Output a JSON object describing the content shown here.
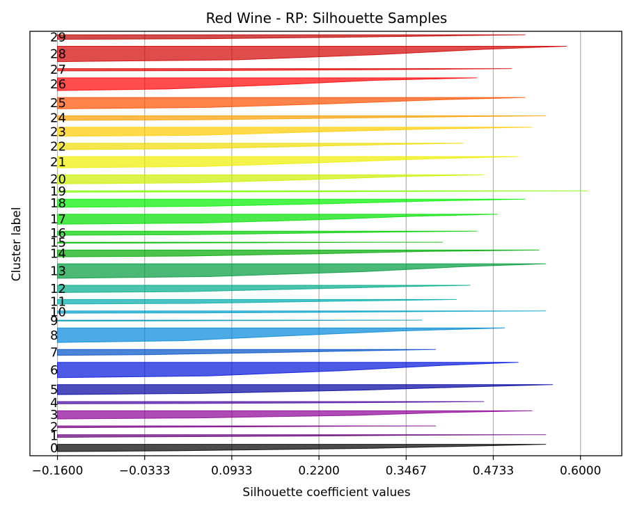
{
  "chart_data": {
    "type": "area",
    "title": "Red Wine - RP: Silhouette Samples",
    "xlabel": "Silhouette coefficient values",
    "ylabel": "Cluster label",
    "xlim": [
      -0.2,
      0.66
    ],
    "grid": "vertical",
    "x_ticks": [
      -0.16,
      -0.0333,
      0.0933,
      0.22,
      0.3467,
      0.4733,
      0.6
    ],
    "x_tick_labels": [
      "−0.1600",
      "−0.0333",
      "0.0933",
      "0.2200",
      "0.3467",
      "0.4733",
      "0.6000"
    ],
    "clusters": [
      {
        "label": "0",
        "size": 16,
        "min": -0.16,
        "p25": 0.02,
        "median": 0.3,
        "p75": 0.46,
        "max": 0.55,
        "color": "#000000"
      },
      {
        "label": "1",
        "size": 6,
        "min": -0.16,
        "p25": -0.1,
        "median": 0.2,
        "p75": 0.36,
        "max": 0.55,
        "color": "#640078"
      },
      {
        "label": "2",
        "size": 4,
        "min": -0.16,
        "p25": -0.1,
        "median": 0.1,
        "p75": 0.26,
        "max": 0.39,
        "color": "#780085"
      },
      {
        "label": "3",
        "size": 18,
        "min": -0.16,
        "p25": 0.04,
        "median": 0.28,
        "p75": 0.41,
        "max": 0.53,
        "color": "#8c0096"
      },
      {
        "label": "4",
        "size": 5,
        "min": -0.16,
        "p25": 0.0,
        "median": 0.25,
        "p75": 0.4,
        "max": 0.46,
        "color": "#4a0aa0"
      },
      {
        "label": "5",
        "size": 22,
        "min": -0.16,
        "p25": 0.05,
        "median": 0.28,
        "p75": 0.45,
        "max": 0.56,
        "color": "#0000a0"
      },
      {
        "label": "6",
        "size": 34,
        "min": -0.16,
        "p25": 0.06,
        "median": 0.25,
        "p75": 0.4,
        "max": 0.51,
        "color": "#0014dc"
      },
      {
        "label": "7",
        "size": 13,
        "min": -0.16,
        "p25": -0.03,
        "median": 0.14,
        "p75": 0.3,
        "max": 0.39,
        "color": "#0050c8"
      },
      {
        "label": "8",
        "size": 32,
        "min": -0.16,
        "p25": 0.02,
        "median": 0.17,
        "p75": 0.34,
        "max": 0.49,
        "color": "#0088d8"
      },
      {
        "label": "9",
        "size": 2,
        "min": -0.16,
        "p25": -0.05,
        "median": 0.1,
        "p75": 0.26,
        "max": 0.37,
        "color": "#0098b4"
      },
      {
        "label": "10",
        "size": 5,
        "min": -0.16,
        "p25": 0.05,
        "median": 0.25,
        "p75": 0.42,
        "max": 0.55,
        "color": "#00a0c8"
      },
      {
        "label": "11",
        "size": 10,
        "min": -0.16,
        "p25": 0.03,
        "median": 0.18,
        "p75": 0.33,
        "max": 0.42,
        "color": "#00aaaa"
      },
      {
        "label": "12",
        "size": 16,
        "min": -0.16,
        "p25": 0.03,
        "median": 0.18,
        "p75": 0.34,
        "max": 0.44,
        "color": "#00aa88"
      },
      {
        "label": "13",
        "size": 32,
        "min": -0.16,
        "p25": 0.06,
        "median": 0.28,
        "p75": 0.43,
        "max": 0.55,
        "color": "#009a3c"
      },
      {
        "label": "14",
        "size": 15,
        "min": -0.16,
        "p25": 0.03,
        "median": 0.22,
        "p75": 0.38,
        "max": 0.54,
        "color": "#00aa00"
      },
      {
        "label": "15",
        "size": 2,
        "min": -0.16,
        "p25": -0.02,
        "median": 0.15,
        "p75": 0.3,
        "max": 0.4,
        "color": "#00b800"
      },
      {
        "label": "16",
        "size": 9,
        "min": -0.16,
        "p25": 0.02,
        "median": 0.18,
        "p75": 0.33,
        "max": 0.45,
        "color": "#00cc00"
      },
      {
        "label": "17",
        "size": 22,
        "min": -0.16,
        "p25": 0.05,
        "median": 0.22,
        "p75": 0.36,
        "max": 0.48,
        "color": "#00e000"
      },
      {
        "label": "18",
        "size": 18,
        "min": -0.16,
        "p25": 0.05,
        "median": 0.24,
        "p75": 0.4,
        "max": 0.52,
        "color": "#00f000"
      },
      {
        "label": "19",
        "size": 3,
        "min": -0.16,
        "p25": 0.05,
        "median": 0.3,
        "p75": 0.5,
        "max": 0.61,
        "color": "#80ff00"
      },
      {
        "label": "20",
        "size": 20,
        "min": -0.16,
        "p25": 0.04,
        "median": 0.2,
        "p75": 0.34,
        "max": 0.46,
        "color": "#ccf000"
      },
      {
        "label": "21",
        "size": 25,
        "min": -0.16,
        "p25": 0.05,
        "median": 0.22,
        "p75": 0.38,
        "max": 0.51,
        "color": "#eeee00"
      },
      {
        "label": "22",
        "size": 14,
        "min": -0.16,
        "p25": 0.03,
        "median": 0.18,
        "p75": 0.32,
        "max": 0.43,
        "color": "#f0dc00"
      },
      {
        "label": "23",
        "size": 20,
        "min": -0.16,
        "p25": 0.05,
        "median": 0.2,
        "p75": 0.38,
        "max": 0.53,
        "color": "#ffcc00"
      },
      {
        "label": "24",
        "size": 10,
        "min": -0.16,
        "p25": 0.05,
        "median": 0.24,
        "p75": 0.42,
        "max": 0.55,
        "color": "#ffa000"
      },
      {
        "label": "25",
        "size": 25,
        "min": -0.16,
        "p25": 0.06,
        "median": 0.24,
        "p75": 0.4,
        "max": 0.52,
        "color": "#ff5000"
      },
      {
        "label": "26",
        "size": 28,
        "min": -0.16,
        "p25": 0.0,
        "median": 0.16,
        "p75": 0.3,
        "max": 0.45,
        "color": "#ff0000"
      },
      {
        "label": "27",
        "size": 5,
        "min": -0.16,
        "p25": 0.06,
        "median": 0.26,
        "p75": 0.42,
        "max": 0.5,
        "color": "#e00000"
      },
      {
        "label": "28",
        "size": 34,
        "min": -0.16,
        "p25": 0.1,
        "median": 0.3,
        "p75": 0.46,
        "max": 0.58,
        "color": "#d00000"
      },
      {
        "label": "29",
        "size": 10,
        "min": -0.16,
        "p25": 0.05,
        "median": 0.25,
        "p75": 0.42,
        "max": 0.52,
        "color": "#c00000"
      }
    ]
  }
}
